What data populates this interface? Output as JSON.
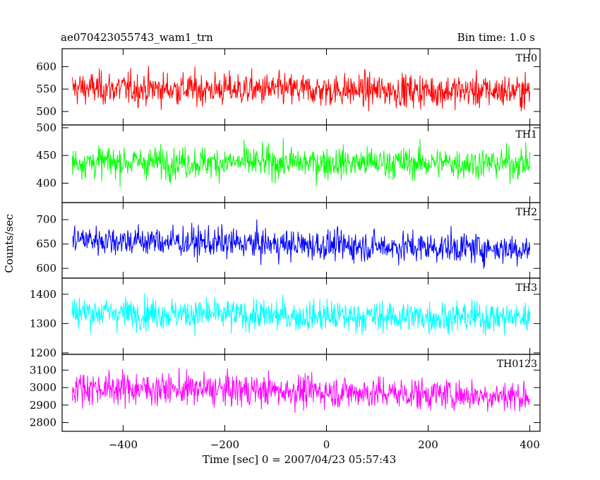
{
  "header": {
    "title": "ae070423055743_wam1_trn",
    "bin_time": "Bin time: 1.0 s"
  },
  "chart_data": {
    "type": "line",
    "title": "ae070423055743_wam1_trn",
    "xlabel": "Time [sec] 0 = 2007/04/23 05:57:43",
    "ylabel": "Counts/sec",
    "xlim": [
      -520,
      420
    ],
    "xticks": [
      -400,
      -200,
      0,
      200,
      400
    ],
    "x_range": [
      -500,
      400
    ],
    "panels": [
      {
        "name": "TH0",
        "color": "#ff0000",
        "ylim": [
          470,
          640
        ],
        "yticks": [
          500,
          550,
          600
        ],
        "mean": 548,
        "noise": 26,
        "trend": [
          552,
          548,
          545
        ]
      },
      {
        "name": "TH1",
        "color": "#00ff00",
        "ylim": [
          365,
          505
        ],
        "yticks": [
          400,
          450,
          500
        ],
        "mean": 437,
        "noise": 20,
        "trend": [
          438,
          437,
          436
        ]
      },
      {
        "name": "TH2",
        "color": "#0000ff",
        "ylim": [
          580,
          735
        ],
        "yticks": [
          600,
          650,
          700
        ],
        "mean": 652,
        "noise": 22,
        "trend": [
          660,
          648,
          640
        ]
      },
      {
        "name": "TH3",
        "color": "#00ffff",
        "ylim": [
          1195,
          1455
        ],
        "yticks": [
          1200,
          1300,
          1400
        ],
        "mean": 1332,
        "noise": 38,
        "trend": [
          1340,
          1325,
          1320
        ]
      },
      {
        "name": "TH0123",
        "color": "#ff00ff",
        "ylim": [
          2750,
          3190
        ],
        "yticks": [
          2800,
          2900,
          3000,
          3100
        ],
        "mean": 2985,
        "noise": 65,
        "trend": [
          3000,
          2980,
          2950
        ]
      }
    ]
  }
}
